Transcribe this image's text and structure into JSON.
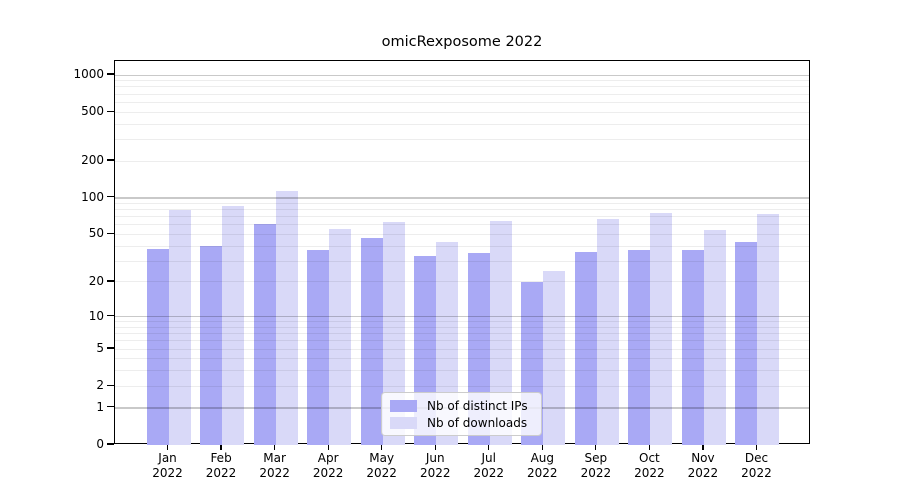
{
  "chart_data": {
    "type": "bar",
    "title": "omicRexposome 2022",
    "categories": [
      "Jan 2022",
      "Feb 2022",
      "Mar 2022",
      "Apr 2022",
      "May 2022",
      "Jun 2022",
      "Jul 2022",
      "Aug 2022",
      "Sep 2022",
      "Oct 2022",
      "Nov 2022",
      "Dec 2022"
    ],
    "series": [
      {
        "name": "Nb of distinct IPs",
        "color": "#a9a9f5",
        "values": [
          38,
          40,
          61,
          37,
          47,
          33,
          35,
          20,
          36,
          37,
          37,
          43
        ]
      },
      {
        "name": "Nb of downloads",
        "color": "#d9d9f8",
        "values": [
          80,
          85,
          113,
          55,
          63,
          43,
          64,
          25,
          67,
          75,
          54,
          74
        ]
      }
    ],
    "yscale": "log1p",
    "yticks": [
      0,
      1,
      2,
      5,
      10,
      20,
      50,
      100,
      200,
      500,
      1000
    ],
    "ylim": [
      0,
      1300
    ],
    "xlabel": "",
    "ylabel": "",
    "grid": "on",
    "legend_position": "lower-center-inside"
  }
}
